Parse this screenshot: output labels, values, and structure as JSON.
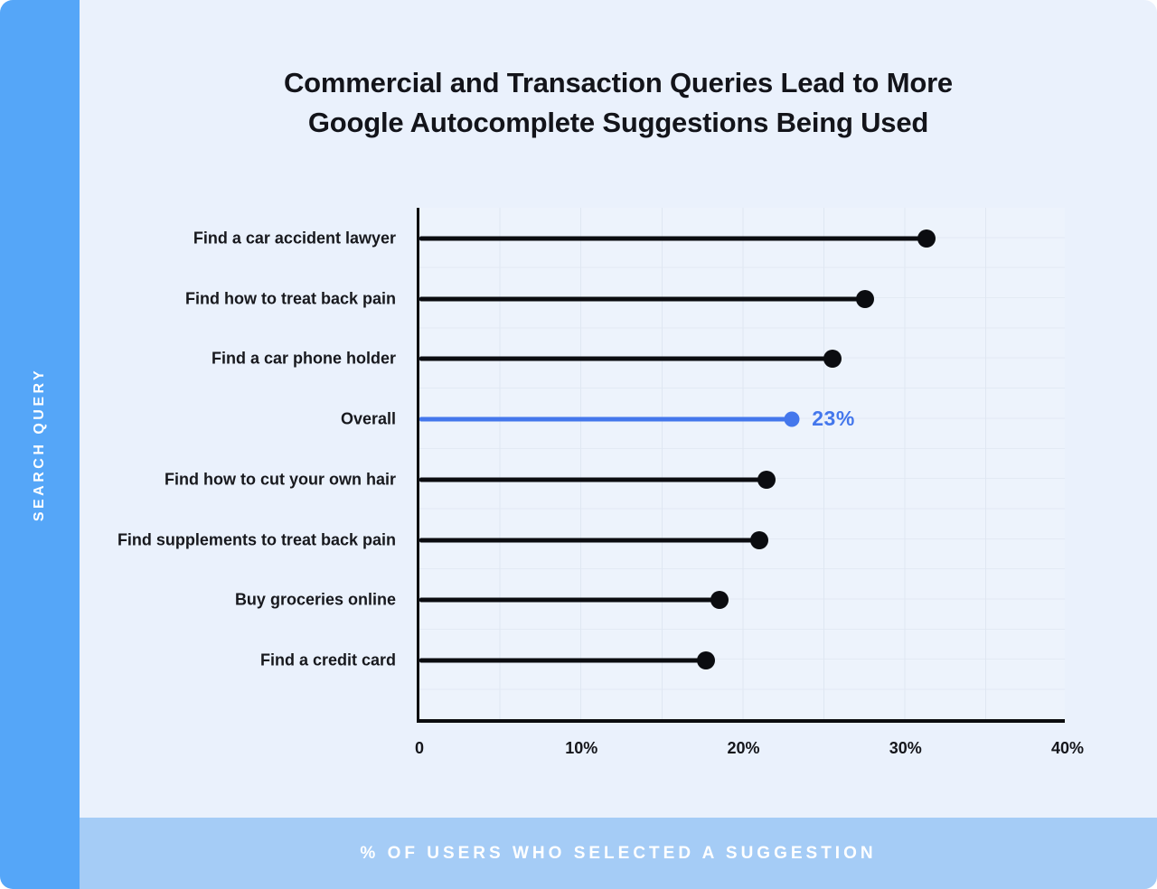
{
  "page": {
    "title_line1": "Commercial and Transaction Queries Lead to More",
    "title_line2": "Google Autocomplete Suggestions Being Used",
    "y_axis_title": "SEARCH QUERY",
    "x_axis_title": "% OF USERS WHO SELECTED A SUGGESTION"
  },
  "colors": {
    "sidebar_blue": "#55a6f8",
    "footer_blue": "#a5ccf6",
    "accent_blue": "#4477ec",
    "lollipop_black": "#0b0c10",
    "page_background": "#eaf1fc",
    "plot_background": "#edf3fc",
    "gridline": "#dfe7f2"
  },
  "chart_data": {
    "type": "bar",
    "variant": "horizontal-lollipop",
    "title": "Commercial and Transaction Queries Lead to More Google Autocomplete Suggestions Being Used",
    "xlabel": "% OF USERS WHO SELECTED A SUGGESTION",
    "ylabel": "SEARCH QUERY",
    "categories": [
      "Find a car accident lawyer",
      "Find how to treat back pain",
      "Find a car phone holder",
      "Overall",
      "Find how to cut your own hair",
      "Find supplements to treat back pain",
      "Buy groceries online",
      "Find a credit card"
    ],
    "values": [
      31.3,
      27.5,
      25.5,
      23,
      21.4,
      21.0,
      18.5,
      17.7
    ],
    "highlight_index": 3,
    "highlight_label": "23%",
    "xlim": [
      0,
      40
    ],
    "xticks": [
      {
        "value": 0,
        "label": "0"
      },
      {
        "value": 10,
        "label": "10%"
      },
      {
        "value": 20,
        "label": "20%"
      },
      {
        "value": 30,
        "label": "30%"
      },
      {
        "value": 40,
        "label": "40%"
      }
    ],
    "grid": true,
    "legend": null
  }
}
